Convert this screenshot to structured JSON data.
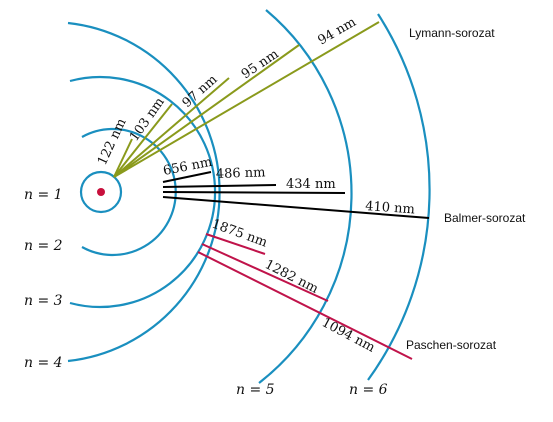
{
  "series_labels": {
    "lyman": "Lymann-sorozat",
    "balmer": "Balmer-sorozat",
    "paschen": "Paschen-sorozat"
  },
  "level_labels": {
    "n1": "n = 1",
    "n2": "n = 2",
    "n3": "n = 3",
    "n4": "n = 4",
    "n5": "n = 5",
    "n6": "n = 6"
  },
  "wavelengths": {
    "lyman": [
      "122 nm",
      "103 nm",
      "97 nm",
      "95 nm",
      "94 nm"
    ],
    "balmer": [
      "656 nm",
      "486 nm",
      "434 nm",
      "410 nm"
    ],
    "paschen": [
      "1875 nm",
      "1282 nm",
      "1094 nm"
    ]
  },
  "colors": {
    "orbit": "#1a8fbf",
    "nucleus": "#c8103c",
    "lyman": "#8a9a1c",
    "balmer": "#000000",
    "paschen": "#c0134a"
  }
}
